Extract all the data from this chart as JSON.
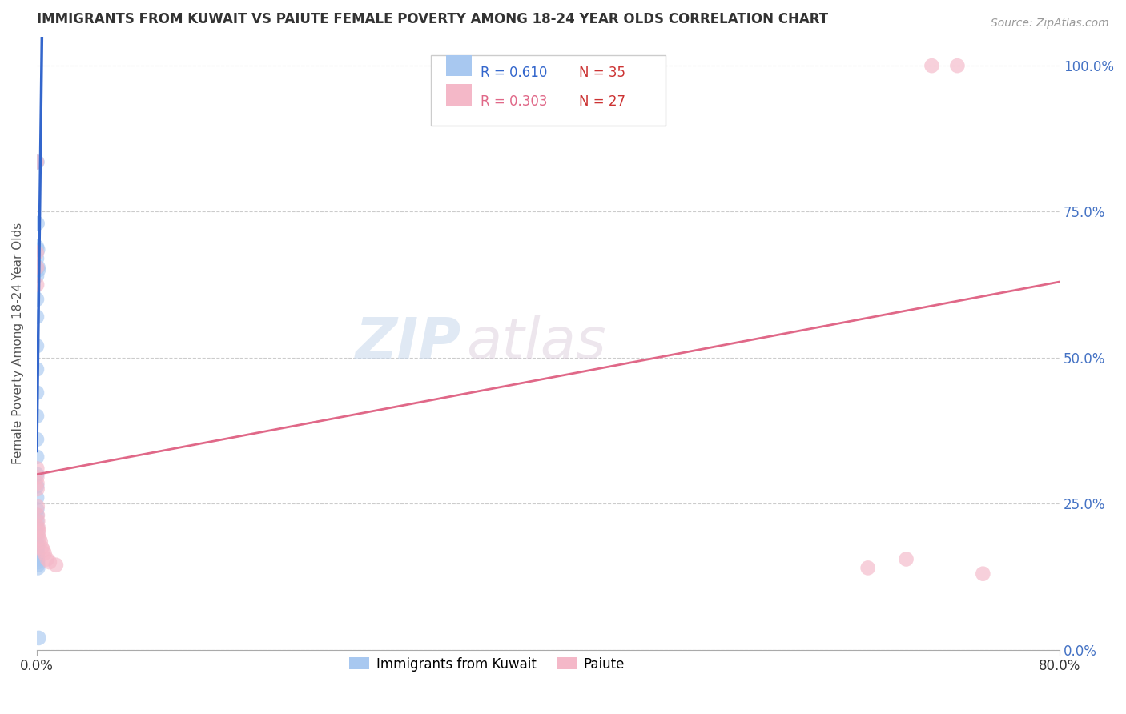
{
  "title": "IMMIGRANTS FROM KUWAIT VS PAIUTE FEMALE POVERTY AMONG 18-24 YEAR OLDS CORRELATION CHART",
  "source": "Source: ZipAtlas.com",
  "ylabel": "Female Poverty Among 18-24 Year Olds",
  "ytick_labels": [
    "0.0%",
    "25.0%",
    "50.0%",
    "75.0%",
    "100.0%"
  ],
  "ytick_values": [
    0.0,
    0.25,
    0.5,
    0.75,
    1.0
  ],
  "right_ytick_color": "#4472c4",
  "legend_r1": "R = 0.610",
  "legend_n1": "N = 35",
  "legend_r2": "R = 0.303",
  "legend_n2": "N = 27",
  "blue_color": "#a8c8f0",
  "blue_line_color": "#3366cc",
  "pink_color": "#f4b8c8",
  "pink_line_color": "#e06888",
  "watermark_zip": "ZIP",
  "watermark_atlas": "atlas",
  "background_color": "#ffffff",
  "grid_color": "#cccccc",
  "kuwait_x": [
    0.0003,
    0.0004,
    0.0008,
    0.001,
    0.0012,
    0.0,
    0.0,
    0.0,
    0.0,
    0.0,
    0.0,
    0.0,
    0.0,
    0.0,
    0.0,
    0.0001,
    0.0001,
    0.0001,
    0.0001,
    0.0002,
    0.0002,
    0.0002,
    0.0003,
    0.0003,
    0.0003,
    0.0004,
    0.0004,
    0.0005,
    0.0005,
    0.0006,
    0.0006,
    0.0007,
    0.0008,
    0.0009,
    0.0015
  ],
  "kuwait_y": [
    0.835,
    0.73,
    0.685,
    0.655,
    0.65,
    0.69,
    0.67,
    0.64,
    0.6,
    0.57,
    0.52,
    0.48,
    0.44,
    0.4,
    0.36,
    0.33,
    0.3,
    0.28,
    0.26,
    0.24,
    0.23,
    0.22,
    0.21,
    0.2,
    0.19,
    0.18,
    0.175,
    0.17,
    0.165,
    0.16,
    0.155,
    0.15,
    0.145,
    0.14,
    0.02
  ],
  "paiute_x": [
    0.0,
    0.0,
    0.0001,
    0.0001,
    0.0002,
    0.0002,
    0.0003,
    0.0004,
    0.0005,
    0.0006,
    0.0008,
    0.001,
    0.0012,
    0.0015,
    0.002,
    0.003,
    0.004,
    0.005,
    0.006,
    0.008,
    0.01,
    0.015,
    0.65,
    0.68,
    0.7,
    0.72,
    0.74
  ],
  "paiute_y": [
    0.835,
    0.68,
    0.655,
    0.625,
    0.31,
    0.295,
    0.285,
    0.275,
    0.245,
    0.23,
    0.22,
    0.21,
    0.205,
    0.2,
    0.19,
    0.185,
    0.175,
    0.17,
    0.165,
    0.155,
    0.15,
    0.145,
    0.14,
    0.155,
    1.0,
    1.0,
    0.13
  ],
  "kuwait_trendline_x": [
    0.0,
    0.004
  ],
  "kuwait_trendline_y": [
    0.34,
    1.05
  ],
  "paiute_trendline_x": [
    0.0,
    0.8
  ],
  "paiute_trendline_y": [
    0.3,
    0.63
  ],
  "xlim": [
    0.0,
    0.8
  ],
  "ylim": [
    0.0,
    1.05
  ],
  "xtick_positions": [
    0.0,
    0.8
  ],
  "xtick_labels": [
    "0.0%",
    "80.0%"
  ]
}
